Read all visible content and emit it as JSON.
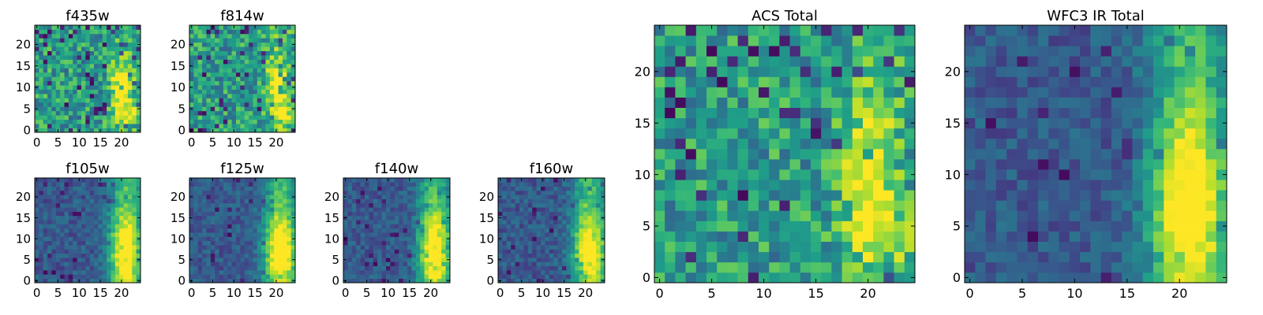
{
  "chart_data": [
    {
      "type": "heatmap",
      "title": "f435w",
      "x_ticks": [
        0,
        5,
        10,
        15,
        20
      ],
      "y_ticks": [
        0,
        5,
        10,
        15,
        20
      ],
      "xlim": [
        -0.5,
        24.5
      ],
      "ylim": [
        -0.5,
        24.5
      ],
      "colormap": "viridis",
      "values": {
        "grid": [
          25,
          25
        ],
        "pattern": "noisy field, mostly green-cyan with scattered dark-purple pixels; bright yellow-green blob near x=20, y=4-12"
      }
    },
    {
      "type": "heatmap",
      "title": "f814w",
      "x_ticks": [
        0,
        5,
        10,
        15,
        20
      ],
      "y_ticks": [
        0,
        5,
        10,
        15,
        20
      ],
      "xlim": [
        -0.5,
        24.5
      ],
      "ylim": [
        -0.5,
        24.5
      ],
      "colormap": "viridis",
      "values": {
        "grid": [
          25,
          25
        ],
        "pattern": "noisy teal-green field; yellow blob near x=19-22, y=6-13"
      }
    },
    {
      "type": "heatmap",
      "title": "f105w",
      "x_ticks": [
        0,
        5,
        10,
        15,
        20
      ],
      "y_ticks": [
        0,
        5,
        10,
        15,
        20
      ],
      "xlim": [
        -0.5,
        24.5
      ],
      "ylim": [
        -0.5,
        24.5
      ],
      "colormap": "viridis",
      "values": {
        "grid": [
          25,
          25
        ],
        "pattern": "blue-purple background; bright yellow band along x=18-23, strongest at y=2-12"
      }
    },
    {
      "type": "heatmap",
      "title": "f125w",
      "x_ticks": [
        0,
        5,
        10,
        15,
        20
      ],
      "y_ticks": [
        0,
        5,
        10,
        15,
        20
      ],
      "xlim": [
        -0.5,
        24.5
      ],
      "ylim": [
        -0.5,
        24.5
      ],
      "colormap": "viridis",
      "values": {
        "grid": [
          25,
          25
        ],
        "pattern": "blue-teal background; yellow band along x=19-24, y=0-14"
      }
    },
    {
      "type": "heatmap",
      "title": "f140w",
      "x_ticks": [
        0,
        5,
        10,
        15,
        20
      ],
      "y_ticks": [
        0,
        5,
        10,
        15,
        20
      ],
      "xlim": [
        -0.5,
        24.5
      ],
      "ylim": [
        -0.5,
        24.5
      ],
      "colormap": "viridis",
      "values": {
        "grid": [
          25,
          25
        ],
        "pattern": "dark blue-purple background; yellow band x=19-24, y=0-13"
      }
    },
    {
      "type": "heatmap",
      "title": "f160w",
      "x_ticks": [
        0,
        5,
        10,
        15,
        20
      ],
      "y_ticks": [
        0,
        5,
        10,
        15,
        20
      ],
      "xlim": [
        -0.5,
        24.5
      ],
      "ylim": [
        -0.5,
        24.5
      ],
      "colormap": "viridis",
      "values": {
        "grid": [
          25,
          25
        ],
        "pattern": "dark blue-purple background; yellow band x=19-24, y=0-12"
      }
    },
    {
      "type": "heatmap",
      "title": "ACS Total",
      "x_ticks": [
        0,
        5,
        10,
        15,
        20
      ],
      "y_ticks": [
        0,
        5,
        10,
        15,
        20
      ],
      "xlim": [
        -0.5,
        24.5
      ],
      "ylim": [
        -0.5,
        24.5
      ],
      "colormap": "viridis",
      "values": {
        "grid": [
          25,
          25
        ],
        "pattern": "noisy green-teal field with dark-purple pixels; yellow blob x=19-21, y=7-15 and y=3-5"
      }
    },
    {
      "type": "heatmap",
      "title": "WFC3 IR Total",
      "x_ticks": [
        0,
        5,
        10,
        15,
        20
      ],
      "y_ticks": [
        0,
        5,
        10,
        15,
        20
      ],
      "xlim": [
        -0.5,
        24.5
      ],
      "ylim": [
        -0.5,
        24.5
      ],
      "colormap": "viridis",
      "values": {
        "grid": [
          25,
          25
        ],
        "pattern": "dark blue-purple background; bright yellow band x=18-23, y=2-14"
      }
    }
  ]
}
